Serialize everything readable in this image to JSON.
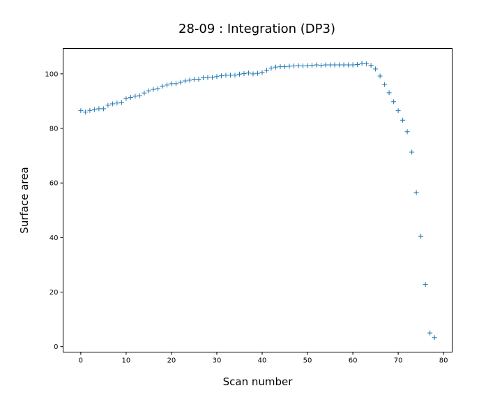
{
  "chart_data": {
    "type": "scatter",
    "title": "28-09 : Integration (DP3)",
    "xlabel": "Scan number",
    "ylabel": "Surface area",
    "xlim": [
      -3.9,
      81.9
    ],
    "ylim": [
      -2,
      109.3
    ],
    "xticks": [
      0,
      10,
      20,
      30,
      40,
      50,
      60,
      70,
      80
    ],
    "yticks": [
      0,
      20,
      40,
      60,
      80,
      100
    ],
    "marker": "+",
    "grid": false,
    "legend": "none",
    "color": "#1f77b4",
    "x": [
      0,
      1,
      2,
      3,
      4,
      5,
      6,
      7,
      8,
      9,
      10,
      11,
      12,
      13,
      14,
      15,
      16,
      17,
      18,
      19,
      20,
      21,
      22,
      23,
      24,
      25,
      26,
      27,
      28,
      29,
      30,
      31,
      32,
      33,
      34,
      35,
      36,
      37,
      38,
      39,
      40,
      41,
      42,
      43,
      44,
      45,
      46,
      47,
      48,
      49,
      50,
      51,
      52,
      53,
      54,
      55,
      56,
      57,
      58,
      59,
      60,
      61,
      62,
      63,
      64,
      65,
      66,
      67,
      68,
      69,
      70,
      71,
      72,
      73,
      74,
      75,
      76,
      77,
      78
    ],
    "y": [
      86.5,
      86.0,
      86.6,
      86.9,
      87.2,
      87.2,
      88.5,
      89.0,
      89.3,
      89.5,
      90.9,
      91.4,
      91.8,
      92.0,
      93.0,
      93.8,
      94.3,
      94.6,
      95.5,
      95.9,
      96.4,
      96.4,
      96.9,
      97.4,
      97.7,
      98.0,
      98.0,
      98.6,
      98.7,
      98.7,
      99.0,
      99.3,
      99.5,
      99.5,
      99.5,
      99.9,
      100.1,
      100.3,
      100.0,
      100.2,
      100.5,
      101.3,
      102.1,
      102.5,
      102.6,
      102.6,
      102.8,
      102.9,
      103.0,
      102.9,
      103.0,
      103.1,
      103.3,
      103.1,
      103.3,
      103.3,
      103.3,
      103.3,
      103.3,
      103.3,
      103.3,
      103.4,
      103.9,
      103.7,
      103.1,
      101.8,
      99.2,
      96.1,
      93.1,
      89.8,
      86.5,
      83.0,
      78.8,
      71.3,
      56.5,
      40.5,
      22.8,
      5.0,
      3.3
    ]
  }
}
